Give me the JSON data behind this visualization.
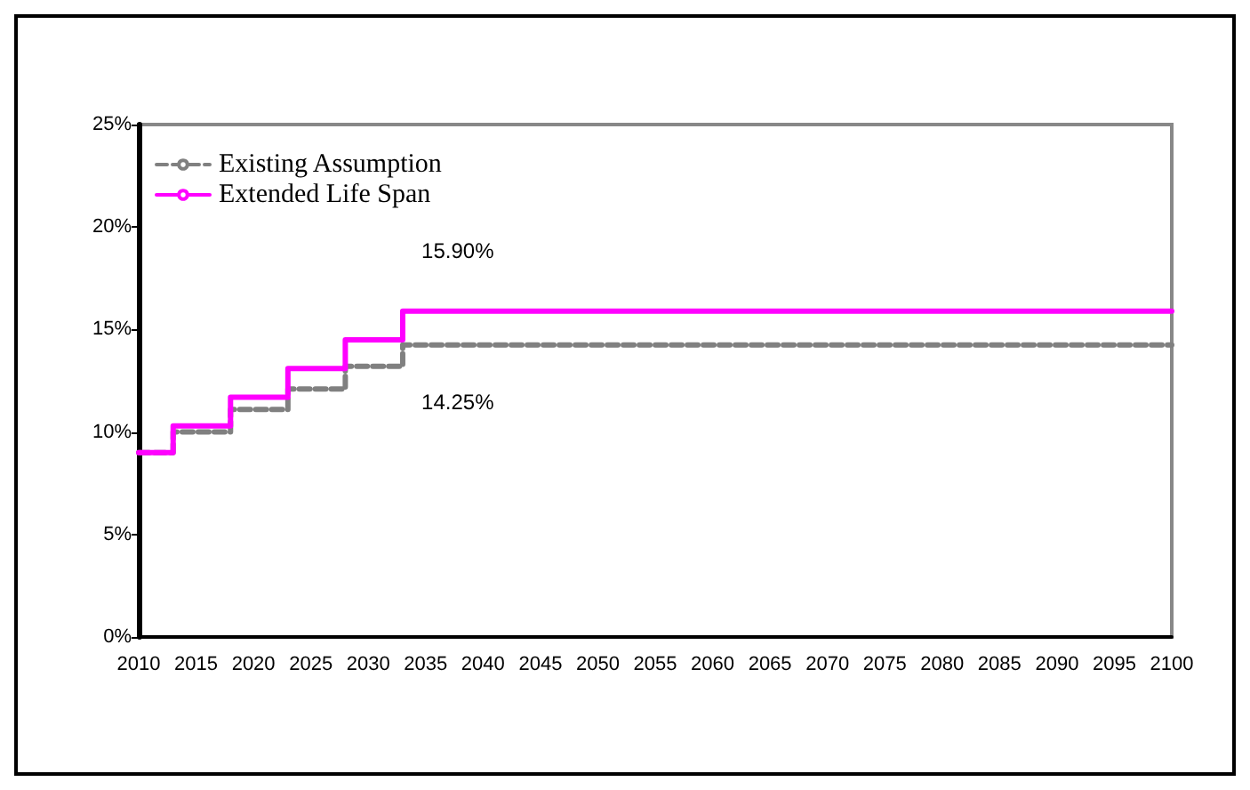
{
  "chart_data": {
    "type": "step",
    "x": [
      2010,
      2013,
      2018,
      2023,
      2028,
      2033,
      2100
    ],
    "series": [
      {
        "name": "Existing Assumption",
        "color": "#808080",
        "line_style": "dashed",
        "values": [
          9.0,
          10.0,
          11.1,
          12.1,
          13.2,
          14.25,
          14.25
        ]
      },
      {
        "name": "Extended Life Span",
        "color": "#ff00ff",
        "line_style": "solid",
        "values": [
          9.0,
          10.3,
          11.7,
          13.1,
          14.5,
          15.9,
          15.9
        ]
      }
    ],
    "xlim": [
      2010,
      2100
    ],
    "xticks": [
      2010,
      2015,
      2020,
      2025,
      2030,
      2035,
      2040,
      2045,
      2050,
      2055,
      2060,
      2065,
      2070,
      2075,
      2080,
      2085,
      2090,
      2095,
      2100
    ],
    "ylim": [
      0,
      25
    ],
    "yticks": [
      {
        "value": 0,
        "label": "0%"
      },
      {
        "value": 5,
        "label": "5%"
      },
      {
        "value": 10,
        "label": "10%"
      },
      {
        "value": 15,
        "label": "15%"
      },
      {
        "value": 20,
        "label": "20%"
      },
      {
        "value": 25,
        "label": "25%"
      }
    ],
    "annotations": [
      {
        "text": "15.90%",
        "x": 2035,
        "y": 15.9
      },
      {
        "text": "14.25%",
        "x": 2035,
        "y": 14.25
      }
    ],
    "grid": false,
    "legend": "top left"
  }
}
